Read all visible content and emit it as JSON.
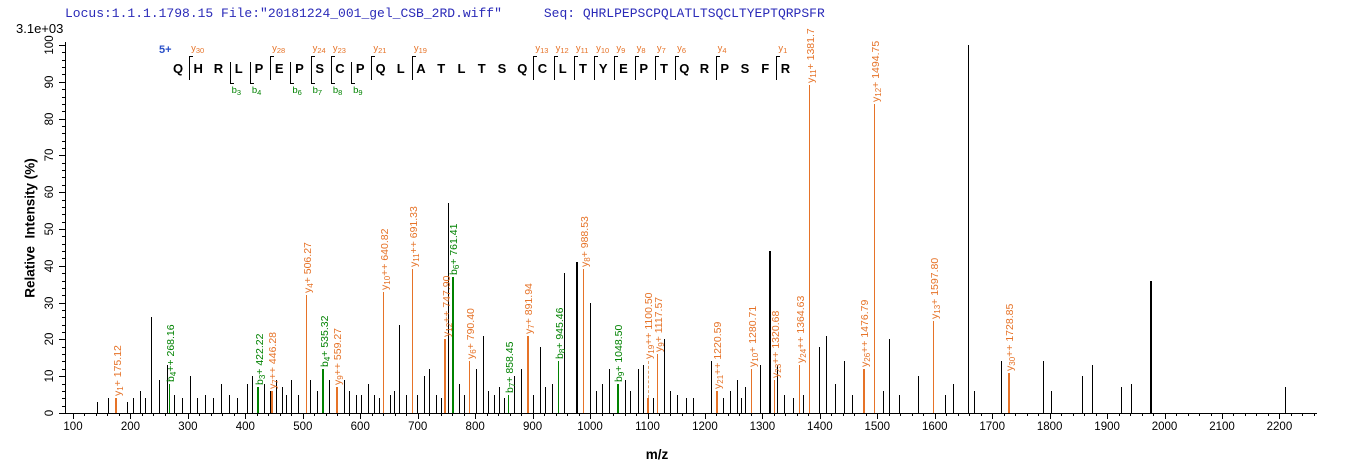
{
  "header": {
    "locus_file": "Locus:1.1.1.1798.15 File:\"20181224_001_gel_CSB_2RD.wiff\"",
    "seq_label": "Seq:",
    "seq_value": "QHRLPEPSCPQLATLTSQCLTYEPTQRPSFR",
    "base_peak_intensity": "3.1e+03"
  },
  "colors": {
    "y_ion": "#e67328",
    "b_ion": "#008200",
    "peak": "#000000",
    "header_text": "#2a2ab8",
    "charge": "#2a50c8",
    "axis": "#000000"
  },
  "sequence_panel": {
    "charge_label": "5+",
    "residues": [
      "Q",
      "H",
      "R",
      "L",
      "P",
      "E",
      "P",
      "S",
      "C",
      "P",
      "Q",
      "L",
      "A",
      "T",
      "L",
      "T",
      "S",
      "Q",
      "C",
      "L",
      "T",
      "Y",
      "E",
      "P",
      "T",
      "Q",
      "R",
      "P",
      "S",
      "F",
      "R"
    ],
    "y_markers": [
      {
        "after": 1,
        "ion": "y",
        "num": "30"
      },
      {
        "after": 5,
        "ion": "y",
        "num": "28"
      },
      {
        "after": 7,
        "ion": "y",
        "num": "24"
      },
      {
        "after": 8,
        "ion": "y",
        "num": "23"
      },
      {
        "after": 10,
        "ion": "y",
        "num": "21"
      },
      {
        "after": 12,
        "ion": "y",
        "num": "19"
      },
      {
        "after": 18,
        "ion": "y",
        "num": "13"
      },
      {
        "after": 19,
        "ion": "y",
        "num": "12"
      },
      {
        "after": 20,
        "ion": "y",
        "num": "11"
      },
      {
        "after": 21,
        "ion": "y",
        "num": "10"
      },
      {
        "after": 22,
        "ion": "y",
        "num": "9"
      },
      {
        "after": 23,
        "ion": "y",
        "num": "8"
      },
      {
        "after": 24,
        "ion": "y",
        "num": "7"
      },
      {
        "after": 25,
        "ion": "y",
        "num": "6"
      },
      {
        "after": 27,
        "ion": "y",
        "num": "4"
      },
      {
        "after": 30,
        "ion": "y",
        "num": "1"
      }
    ],
    "b_markers": [
      {
        "after": 3,
        "ion": "b",
        "num": "3"
      },
      {
        "after": 4,
        "ion": "b",
        "num": "4"
      },
      {
        "after": 6,
        "ion": "b",
        "num": "6"
      },
      {
        "after": 7,
        "ion": "b",
        "num": "7"
      },
      {
        "after": 8,
        "ion": "b",
        "num": "8"
      },
      {
        "after": 9,
        "ion": "b",
        "num": "9"
      }
    ]
  },
  "axes": {
    "y_title": "Relative  Intensity (%)",
    "x_title": "m/z",
    "x_major_ticks": [
      100,
      200,
      300,
      400,
      500,
      600,
      700,
      800,
      900,
      1000,
      1100,
      1200,
      1300,
      1400,
      1500,
      1600,
      1700,
      1800,
      1900,
      2000,
      2100,
      2200
    ],
    "x_minor_step": 20,
    "x_minor_max": 2260,
    "y_major_ticks": [
      0,
      10,
      20,
      30,
      40,
      50,
      60,
      70,
      80,
      90,
      100
    ],
    "y_minor_step": 2
  },
  "chart_data": {
    "type": "bar",
    "subtype": "ms2-fragment-spectrum",
    "xlabel": "m/z",
    "ylabel": "Relative  Intensity (%)",
    "xlim": [
      100,
      2260
    ],
    "ylim": [
      0,
      100
    ],
    "base_peak_intensity": "3.1e+03",
    "labeled_peaks": [
      {
        "ion": "y",
        "num": "1",
        "charge": "+",
        "mz": 175.12,
        "mz_text": "175.12",
        "pct": 4
      },
      {
        "ion": "b",
        "num": "4",
        "charge": "++",
        "mz": 268.16,
        "mz_text": "268.16",
        "pct": 8
      },
      {
        "ion": "b",
        "num": "3",
        "charge": "+",
        "mz": 422.22,
        "mz_text": "422.22",
        "pct": 7
      },
      {
        "ion": "y",
        "num": "7",
        "charge": "++",
        "mz": 446.28,
        "mz_text": "446.28",
        "pct": 6
      },
      {
        "ion": "y",
        "num": "4",
        "charge": "+",
        "mz": 506.27,
        "mz_text": "506.27",
        "pct": 32
      },
      {
        "ion": "b",
        "num": "4",
        "charge": "+",
        "mz": 535.32,
        "mz_text": "535.32",
        "pct": 12
      },
      {
        "ion": "y",
        "num": "9",
        "charge": "++",
        "mz": 559.27,
        "mz_text": "559.27",
        "pct": 7
      },
      {
        "ion": "y",
        "num": "10",
        "charge": "++",
        "mz": 640.82,
        "mz_text": "640.82",
        "pct": 33
      },
      {
        "ion": "y",
        "num": "11",
        "charge": "++",
        "mz": 691.33,
        "mz_text": "691.33",
        "pct": 39
      },
      {
        "ion": "y",
        "num": "12",
        "charge": "++",
        "mz": 747.9,
        "mz_text": "747.90",
        "pct": 20
      },
      {
        "ion": "b",
        "num": "6",
        "charge": "+",
        "mz": 761.41,
        "mz_text": "761.41",
        "pct": 37
      },
      {
        "ion": "y",
        "num": "6",
        "charge": "+",
        "mz": 790.4,
        "mz_text": "790.40",
        "pct": 14
      },
      {
        "ion": "b",
        "num": "7",
        "charge": "+",
        "mz": 858.45,
        "mz_text": "858.45",
        "pct": 5
      },
      {
        "ion": "y",
        "num": "7",
        "charge": "+",
        "mz": 891.94,
        "mz_text": "891.94",
        "pct": 21
      },
      {
        "ion": "b",
        "num": "8",
        "charge": "+",
        "mz": 945.46,
        "mz_text": "945.46",
        "pct": 14
      },
      {
        "ion": "y",
        "num": "8",
        "charge": "+",
        "mz": 988.53,
        "mz_text": "988.53",
        "pct": 39
      },
      {
        "ion": "b",
        "num": "9",
        "charge": "+",
        "mz": 1048.5,
        "mz_text": "1048.50",
        "pct": 8
      },
      {
        "ion": "y",
        "num": "19",
        "charge": "++",
        "mz": 1100.5,
        "mz_text": "1100.50",
        "pct": 4,
        "lift": 14
      },
      {
        "ion": "y",
        "num": "9",
        "charge": "+",
        "mz": 1117.57,
        "mz_text": "1117.57",
        "pct": 16
      },
      {
        "ion": "y",
        "num": "21",
        "charge": "++",
        "mz": 1220.59,
        "mz_text": "1220.59",
        "pct": 6
      },
      {
        "ion": "y",
        "num": "10",
        "charge": "+",
        "mz": 1280.71,
        "mz_text": "1280.71",
        "pct": 12
      },
      {
        "ion": "y",
        "num": "23",
        "charge": "++",
        "mz": 1320.68,
        "mz_text": "1320.68",
        "pct": 9
      },
      {
        "ion": "y",
        "num": "24",
        "charge": "++",
        "mz": 1364.63,
        "mz_text": "1364.63",
        "pct": 13
      },
      {
        "ion": "y",
        "num": "11",
        "charge": "+",
        "mz": 1381.7,
        "mz_text": "1381.7",
        "pct": 89
      },
      {
        "ion": "y",
        "num": "26",
        "charge": "++",
        "mz": 1476.79,
        "mz_text": "1476.79",
        "pct": 12
      },
      {
        "ion": "y",
        "num": "12",
        "charge": "+",
        "mz": 1494.75,
        "mz_text": "1494.75",
        "pct": 84
      },
      {
        "ion": "y",
        "num": "13",
        "charge": "+",
        "mz": 1597.8,
        "mz_text": "1597.80",
        "pct": 25
      },
      {
        "ion": "y",
        "num": "30",
        "charge": "++",
        "mz": 1728.85,
        "mz_text": "1728.85",
        "pct": 11
      }
    ],
    "background_peaks": [
      [
        142,
        3
      ],
      [
        161,
        4
      ],
      [
        194,
        3
      ],
      [
        205,
        4
      ],
      [
        217,
        6
      ],
      [
        227,
        4
      ],
      [
        237,
        26
      ],
      [
        251,
        9
      ],
      [
        265,
        13
      ],
      [
        277,
        5
      ],
      [
        290,
        4
      ],
      [
        304,
        10
      ],
      [
        316,
        4
      ],
      [
        330,
        5
      ],
      [
        344,
        4
      ],
      [
        359,
        8
      ],
      [
        373,
        5
      ],
      [
        387,
        4
      ],
      [
        403,
        8
      ],
      [
        412,
        10
      ],
      [
        434,
        8
      ],
      [
        443,
        6
      ],
      [
        455,
        9
      ],
      [
        464,
        7
      ],
      [
        472,
        5
      ],
      [
        481,
        9
      ],
      [
        492,
        5
      ],
      [
        514,
        9
      ],
      [
        525,
        6
      ],
      [
        547,
        9
      ],
      [
        572,
        9
      ],
      [
        582,
        6
      ],
      [
        593,
        5
      ],
      [
        603,
        5
      ],
      [
        614,
        8
      ],
      [
        624,
        5
      ],
      [
        634,
        4
      ],
      [
        653,
        5
      ],
      [
        660,
        6
      ],
      [
        669,
        24
      ],
      [
        680,
        5
      ],
      [
        700,
        5
      ],
      [
        711,
        10
      ],
      [
        721,
        12
      ],
      [
        732,
        5
      ],
      [
        741,
        4
      ],
      [
        753,
        57
      ],
      [
        773,
        8
      ],
      [
        782,
        5
      ],
      [
        803,
        12
      ],
      [
        814,
        21
      ],
      [
        824,
        6
      ],
      [
        834,
        5
      ],
      [
        843,
        7
      ],
      [
        851,
        4
      ],
      [
        869,
        10
      ],
      [
        880,
        12
      ],
      [
        902,
        5
      ],
      [
        913,
        18
      ],
      [
        923,
        7
      ],
      [
        934,
        8
      ],
      [
        955,
        38
      ],
      [
        977,
        41
      ],
      [
        1000,
        30
      ],
      [
        1012,
        6
      ],
      [
        1022,
        8
      ],
      [
        1034,
        12
      ],
      [
        1061,
        9
      ],
      [
        1071,
        6
      ],
      [
        1085,
        12
      ],
      [
        1093,
        13
      ],
      [
        1110,
        4
      ],
      [
        1130,
        20
      ],
      [
        1140,
        6
      ],
      [
        1152,
        5
      ],
      [
        1168,
        4
      ],
      [
        1180,
        4
      ],
      [
        1212,
        14
      ],
      [
        1232,
        4
      ],
      [
        1245,
        6
      ],
      [
        1256,
        9
      ],
      [
        1263,
        4
      ],
      [
        1270,
        7
      ],
      [
        1296,
        13
      ],
      [
        1313,
        44
      ],
      [
        1327,
        13
      ],
      [
        1339,
        5
      ],
      [
        1355,
        4
      ],
      [
        1372,
        5
      ],
      [
        1400,
        18
      ],
      [
        1412,
        21
      ],
      [
        1428,
        8
      ],
      [
        1443,
        14
      ],
      [
        1456,
        5
      ],
      [
        1510,
        6
      ],
      [
        1522,
        20
      ],
      [
        1538,
        5
      ],
      [
        1571,
        10
      ],
      [
        1618,
        5
      ],
      [
        1632,
        8
      ],
      [
        1658,
        100
      ],
      [
        1670,
        6
      ],
      [
        1717,
        14
      ],
      [
        1789,
        14
      ],
      [
        1804,
        6
      ],
      [
        1858,
        10
      ],
      [
        1875,
        13
      ],
      [
        1925,
        7
      ],
      [
        1943,
        8
      ],
      [
        1976,
        36
      ],
      [
        2210,
        7
      ]
    ]
  }
}
